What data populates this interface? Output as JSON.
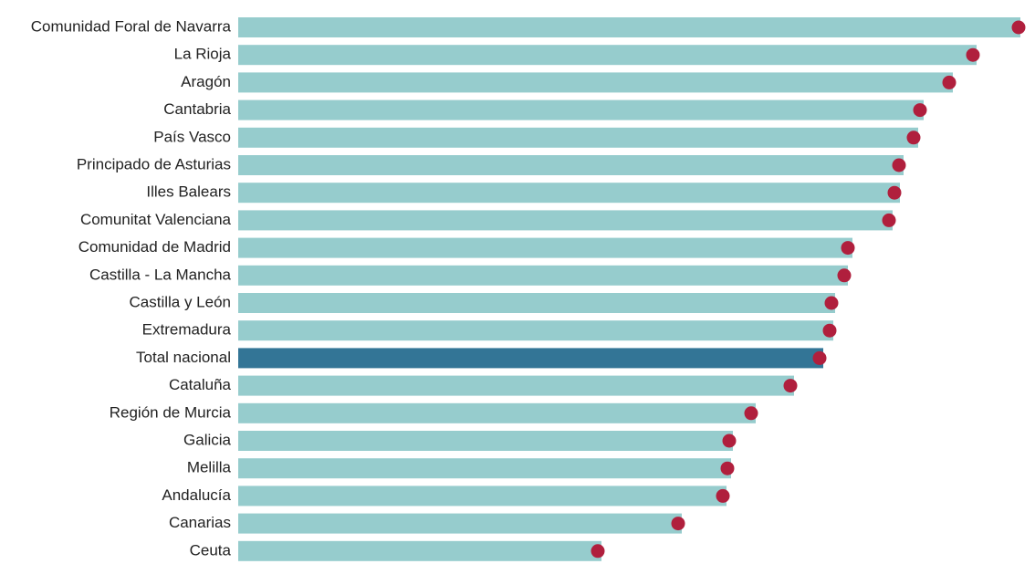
{
  "chart_data": {
    "type": "bar-dot",
    "orientation": "horizontal",
    "categories": [
      "Comunidad Foral de Navarra",
      "La Rioja",
      "Aragón",
      "Cantabria",
      "País Vasco",
      "Principado de Asturias",
      "Illes Balears",
      "Comunitat Valenciana",
      "Comunidad de Madrid",
      "Castilla - La Mancha",
      "Castilla y León",
      "Extremadura",
      "Total nacional",
      "Cataluña",
      "Región de Murcia",
      "Galicia",
      "Melilla",
      "Andalucía",
      "Canarias",
      "Ceuta"
    ],
    "series": [
      {
        "mark": "bar",
        "colors": [
          "#96cccd",
          "#96cccd",
          "#96cccd",
          "#96cccd",
          "#96cccd",
          "#96cccd",
          "#96cccd",
          "#96cccd",
          "#96cccd",
          "#96cccd",
          "#96cccd",
          "#96cccd",
          "#337596",
          "#96cccd",
          "#96cccd",
          "#96cccd",
          "#96cccd",
          "#96cccd",
          "#96cccd",
          "#96cccd"
        ],
        "values": [
          85.7,
          80.9,
          78.3,
          75.1,
          74.5,
          72.9,
          72.5,
          71.7,
          67.3,
          66.8,
          65.4,
          65.2,
          64.1,
          60.9,
          56.7,
          54.2,
          54.0,
          53.5,
          48.6,
          39.8
        ]
      },
      {
        "mark": "dot",
        "color": "#b01f3d",
        "values": [
          85.5,
          80.5,
          77.9,
          74.7,
          74.0,
          72.4,
          71.9,
          71.3,
          66.8,
          66.4,
          65.0,
          64.8,
          63.7,
          60.5,
          56.2,
          53.8,
          53.6,
          53.1,
          48.2,
          39.4
        ]
      }
    ]
  }
}
